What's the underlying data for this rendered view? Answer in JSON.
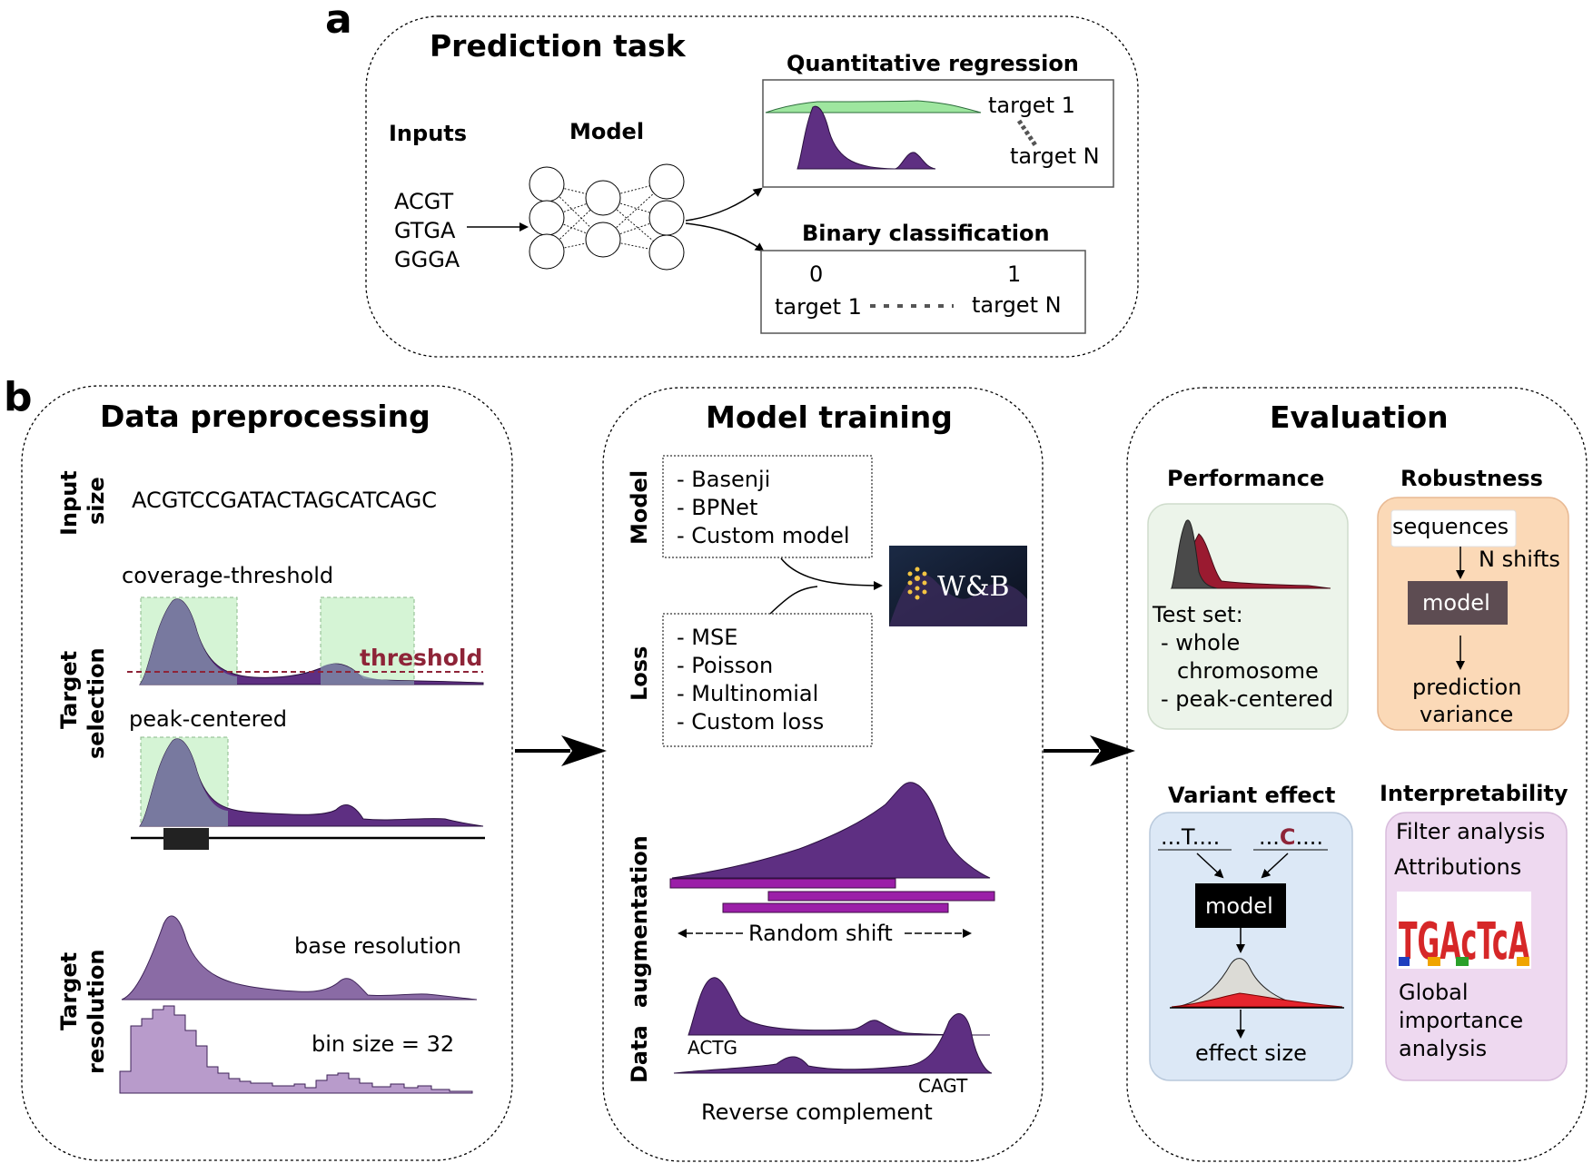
{
  "panel_a": {
    "letter": "a",
    "title": "Prediction task",
    "inputs_label": "Inputs",
    "model_label": "Model",
    "sequences": [
      "ACGT",
      "GTGA",
      "GGGA"
    ],
    "regression_title": "Quantitative regression",
    "regression_target1": "target 1",
    "regression_targetN": "target N",
    "classification_title": "Binary classification",
    "class_zero": "0",
    "class_one": "1",
    "class_target1": "target 1",
    "class_targetN": "target N"
  },
  "panel_b": {
    "letter": "b",
    "preprocessing": {
      "title": "Data preprocessing",
      "input_size_label_line1": "Input",
      "input_size_label_line2": "size",
      "input_sequence": "ACGTCCGATACTAGCATCAGC",
      "target_selection_line1": "Target",
      "target_selection_line2": "selection",
      "coverage_threshold": "coverage-threshold",
      "threshold_word": "threshold",
      "peak_centered": "peak-centered",
      "target_resolution_line1": "Target",
      "target_resolution_line2": "resolution",
      "base_resolution": "base resolution",
      "bin_size": "bin size = 32"
    },
    "training": {
      "title": "Model training",
      "model_label": "Model",
      "models": [
        "- Basenji",
        "- BPNet",
        "- Custom model"
      ],
      "loss_label": "Loss",
      "losses": [
        "- MSE",
        "- Poisson",
        "- Multinomial",
        "- Custom loss"
      ],
      "wandb_logo": "W&B",
      "augmentation_line1": "Data",
      "augmentation_line2": "augmentation",
      "random_shift": "Random shift",
      "actg": "ACTG",
      "cagt": "CAGT",
      "reverse_complement": "Reverse  complement"
    },
    "evaluation": {
      "title": "Evaluation",
      "performance_title": "Performance",
      "test_set": "Test set:",
      "test_items": [
        "- whole",
        "chromosome",
        "- peak-centered"
      ],
      "robustness_title": "Robustness",
      "sequences": "sequences",
      "n_shifts": "N shifts",
      "model": "model",
      "prediction": "prediction",
      "variance": "variance",
      "variant_title": "Variant effect",
      "seq_t": "...T....",
      "seq_c_prefix": "...",
      "seq_c_letter": "C",
      "seq_c_suffix": "....",
      "variant_model": "model",
      "effect_size": "effect size",
      "interpretability_title": "Interpretability",
      "filter_analysis": "Filter analysis",
      "attributions": "Attributions",
      "logo_text": "TGAcTcA",
      "global_line1": "Global",
      "global_line2": "importance",
      "global_line3": "analysis"
    }
  },
  "colors": {
    "purple_dark": "#5e2f82",
    "purple_mid": "#8a6ba5",
    "purple_light": "#b89bcb",
    "green_light": "#9ee69f",
    "green_box": "#c7f0c7",
    "threshold_red": "#8e2438",
    "magenta_bar": "#9b1fa8",
    "performance_bg": "#ecf4ea",
    "robustness_bg": "#fbd9b7",
    "variant_bg": "#dce8f6",
    "interp_bg": "#eed9f0"
  }
}
